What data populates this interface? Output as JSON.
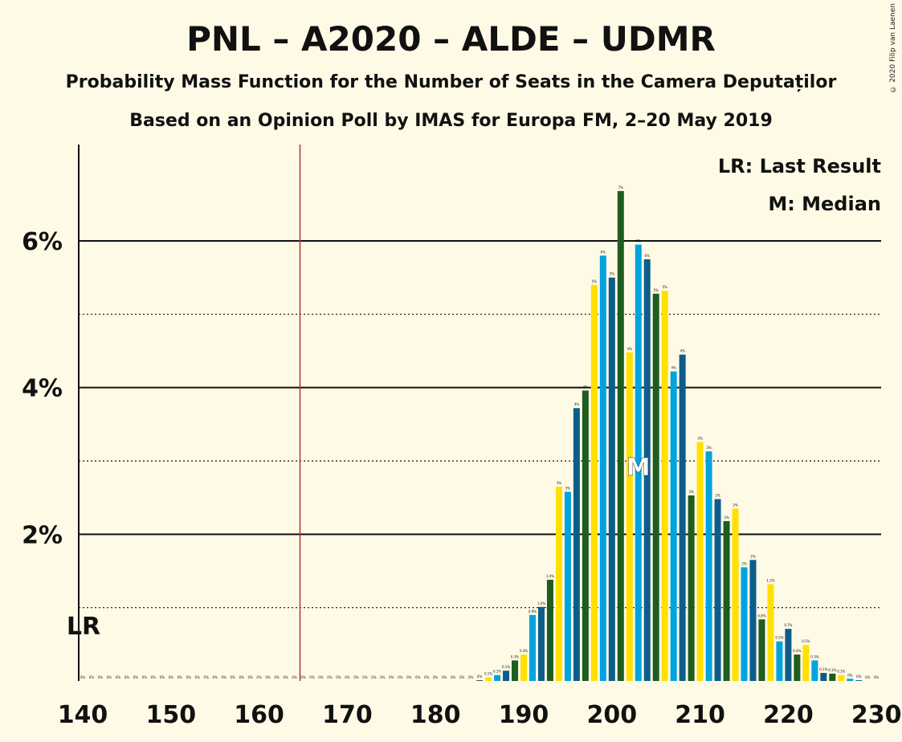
{
  "title": "PNL – A2020 – ALDE – UDMR",
  "subtitle1": "Probability Mass Function for the Number of Seats in the Camera Deputaților",
  "subtitle2": "Based on an Opinion Poll by IMAS for Europa FM, 2–20 May 2019",
  "copyright": "© 2020 Filip van Laenen",
  "legend": {
    "lr": "LR: Last Result",
    "m": "M: Median"
  },
  "markers": {
    "lr_label": "LR",
    "median_label": "M"
  },
  "colors": {
    "blue": "#0C5D8C",
    "green": "#1F5C1F",
    "yellow": "#FFE000",
    "sky": "#00A3E0",
    "lr_line": "#B5303D"
  },
  "chart_data": {
    "type": "bar",
    "xlabel": "",
    "ylabel": "",
    "x_range": [
      140,
      230
    ],
    "ylim": [
      0,
      7.3
    ],
    "x_ticks": [
      140,
      150,
      160,
      170,
      180,
      190,
      200,
      210,
      220,
      230
    ],
    "y_ticks": [
      {
        "value": 2,
        "label": "2%"
      },
      {
        "value": 4,
        "label": "4%"
      },
      {
        "value": 6,
        "label": "6%"
      }
    ],
    "minor_gridlines": [
      1,
      3,
      5
    ],
    "last_result": 165,
    "median": 203,
    "bars": [
      {
        "x": 140,
        "value": 0,
        "label": "0%"
      },
      {
        "x": 141,
        "value": 0,
        "label": "0%"
      },
      {
        "x": 142,
        "value": 0,
        "label": "0%"
      },
      {
        "x": 143,
        "value": 0,
        "label": "0%"
      },
      {
        "x": 144,
        "value": 0,
        "label": "0%"
      },
      {
        "x": 145,
        "value": 0,
        "label": "0%"
      },
      {
        "x": 146,
        "value": 0,
        "label": "0%"
      },
      {
        "x": 147,
        "value": 0,
        "label": "0%"
      },
      {
        "x": 148,
        "value": 0,
        "label": "0%"
      },
      {
        "x": 149,
        "value": 0,
        "label": "0%"
      },
      {
        "x": 150,
        "value": 0,
        "label": "0%"
      },
      {
        "x": 151,
        "value": 0,
        "label": "0%"
      },
      {
        "x": 152,
        "value": 0,
        "label": "0%"
      },
      {
        "x": 153,
        "value": 0,
        "label": "0%"
      },
      {
        "x": 154,
        "value": 0,
        "label": "0%"
      },
      {
        "x": 155,
        "value": 0,
        "label": "0%"
      },
      {
        "x": 156,
        "value": 0,
        "label": "0%"
      },
      {
        "x": 157,
        "value": 0,
        "label": "0%"
      },
      {
        "x": 158,
        "value": 0,
        "label": "0%"
      },
      {
        "x": 159,
        "value": 0,
        "label": "0%"
      },
      {
        "x": 160,
        "value": 0,
        "label": "0%"
      },
      {
        "x": 161,
        "value": 0,
        "label": "0%"
      },
      {
        "x": 162,
        "value": 0,
        "label": "0%"
      },
      {
        "x": 163,
        "value": 0,
        "label": "0%"
      },
      {
        "x": 164,
        "value": 0,
        "label": "0%"
      },
      {
        "x": 165,
        "value": 0,
        "label": "0%"
      },
      {
        "x": 166,
        "value": 0,
        "label": "0%"
      },
      {
        "x": 167,
        "value": 0,
        "label": "0%"
      },
      {
        "x": 168,
        "value": 0,
        "label": "0%"
      },
      {
        "x": 169,
        "value": 0,
        "label": "0%"
      },
      {
        "x": 170,
        "value": 0,
        "label": "0%"
      },
      {
        "x": 171,
        "value": 0,
        "label": "0%"
      },
      {
        "x": 172,
        "value": 0,
        "label": "0%"
      },
      {
        "x": 173,
        "value": 0,
        "label": "0%"
      },
      {
        "x": 174,
        "value": 0,
        "label": "0%"
      },
      {
        "x": 175,
        "value": 0,
        "label": "0%"
      },
      {
        "x": 176,
        "value": 0,
        "label": "0%"
      },
      {
        "x": 177,
        "value": 0,
        "label": "0%"
      },
      {
        "x": 178,
        "value": 0,
        "label": "0%"
      },
      {
        "x": 179,
        "value": 0,
        "label": "0%"
      },
      {
        "x": 180,
        "value": 0,
        "label": "0%"
      },
      {
        "x": 181,
        "value": 0,
        "label": "0%"
      },
      {
        "x": 182,
        "value": 0,
        "label": "0%"
      },
      {
        "x": 183,
        "value": 0,
        "label": "0%"
      },
      {
        "x": 184,
        "value": 0,
        "label": "0%"
      },
      {
        "x": 185,
        "value": 0.01,
        "label": "0%"
      },
      {
        "x": 186,
        "value": 0.05,
        "label": "0.1%"
      },
      {
        "x": 187,
        "value": 0.08,
        "label": "0.1%"
      },
      {
        "x": 188,
        "value": 0.14,
        "label": "0.1%"
      },
      {
        "x": 189,
        "value": 0.28,
        "label": "0.3%"
      },
      {
        "x": 190,
        "value": 0.36,
        "label": "0.4%"
      },
      {
        "x": 191,
        "value": 0.9,
        "label": "0.9%"
      },
      {
        "x": 192,
        "value": 1.01,
        "label": "1.0%"
      },
      {
        "x": 193,
        "value": 1.38,
        "label": "1.4%"
      },
      {
        "x": 194,
        "value": 2.65,
        "label": "3%"
      },
      {
        "x": 195,
        "value": 2.58,
        "label": "3%"
      },
      {
        "x": 196,
        "value": 3.72,
        "label": "4%"
      },
      {
        "x": 197,
        "value": 3.96,
        "label": "4%"
      },
      {
        "x": 198,
        "value": 5.4,
        "label": "5%"
      },
      {
        "x": 199,
        "value": 5.8,
        "label": "6%"
      },
      {
        "x": 200,
        "value": 5.5,
        "label": "5%"
      },
      {
        "x": 201,
        "value": 6.68,
        "label": "7%"
      },
      {
        "x": 202,
        "value": 4.48,
        "label": "4%"
      },
      {
        "x": 203,
        "value": 5.95,
        "label": "6%"
      },
      {
        "x": 204,
        "value": 5.75,
        "label": "6%"
      },
      {
        "x": 205,
        "value": 5.28,
        "label": "5%"
      },
      {
        "x": 206,
        "value": 5.32,
        "label": "5%"
      },
      {
        "x": 207,
        "value": 4.22,
        "label": "4%"
      },
      {
        "x": 208,
        "value": 4.45,
        "label": "4%"
      },
      {
        "x": 209,
        "value": 2.53,
        "label": "3%"
      },
      {
        "x": 210,
        "value": 3.26,
        "label": "3%"
      },
      {
        "x": 211,
        "value": 3.13,
        "label": "3%"
      },
      {
        "x": 212,
        "value": 2.48,
        "label": "2%"
      },
      {
        "x": 213,
        "value": 2.18,
        "label": "2%"
      },
      {
        "x": 214,
        "value": 2.35,
        "label": "2%"
      },
      {
        "x": 215,
        "value": 1.55,
        "label": "2%"
      },
      {
        "x": 216,
        "value": 1.65,
        "label": "2%"
      },
      {
        "x": 217,
        "value": 0.84,
        "label": "0.8%"
      },
      {
        "x": 218,
        "value": 1.32,
        "label": "1.3%"
      },
      {
        "x": 219,
        "value": 0.54,
        "label": "0.5%"
      },
      {
        "x": 220,
        "value": 0.71,
        "label": "0.7%"
      },
      {
        "x": 221,
        "value": 0.36,
        "label": "0.4%"
      },
      {
        "x": 222,
        "value": 0.49,
        "label": "0.5%"
      },
      {
        "x": 223,
        "value": 0.28,
        "label": "0.3%"
      },
      {
        "x": 224,
        "value": 0.11,
        "label": "0.1%"
      },
      {
        "x": 225,
        "value": 0.1,
        "label": "0.1%"
      },
      {
        "x": 226,
        "value": 0.08,
        "label": "0.1%"
      },
      {
        "x": 227,
        "value": 0.03,
        "label": "0%"
      },
      {
        "x": 228,
        "value": 0.01,
        "label": "0%"
      },
      {
        "x": 229,
        "value": 0,
        "label": "0%"
      },
      {
        "x": 230,
        "value": 0,
        "label": "0%"
      }
    ]
  }
}
